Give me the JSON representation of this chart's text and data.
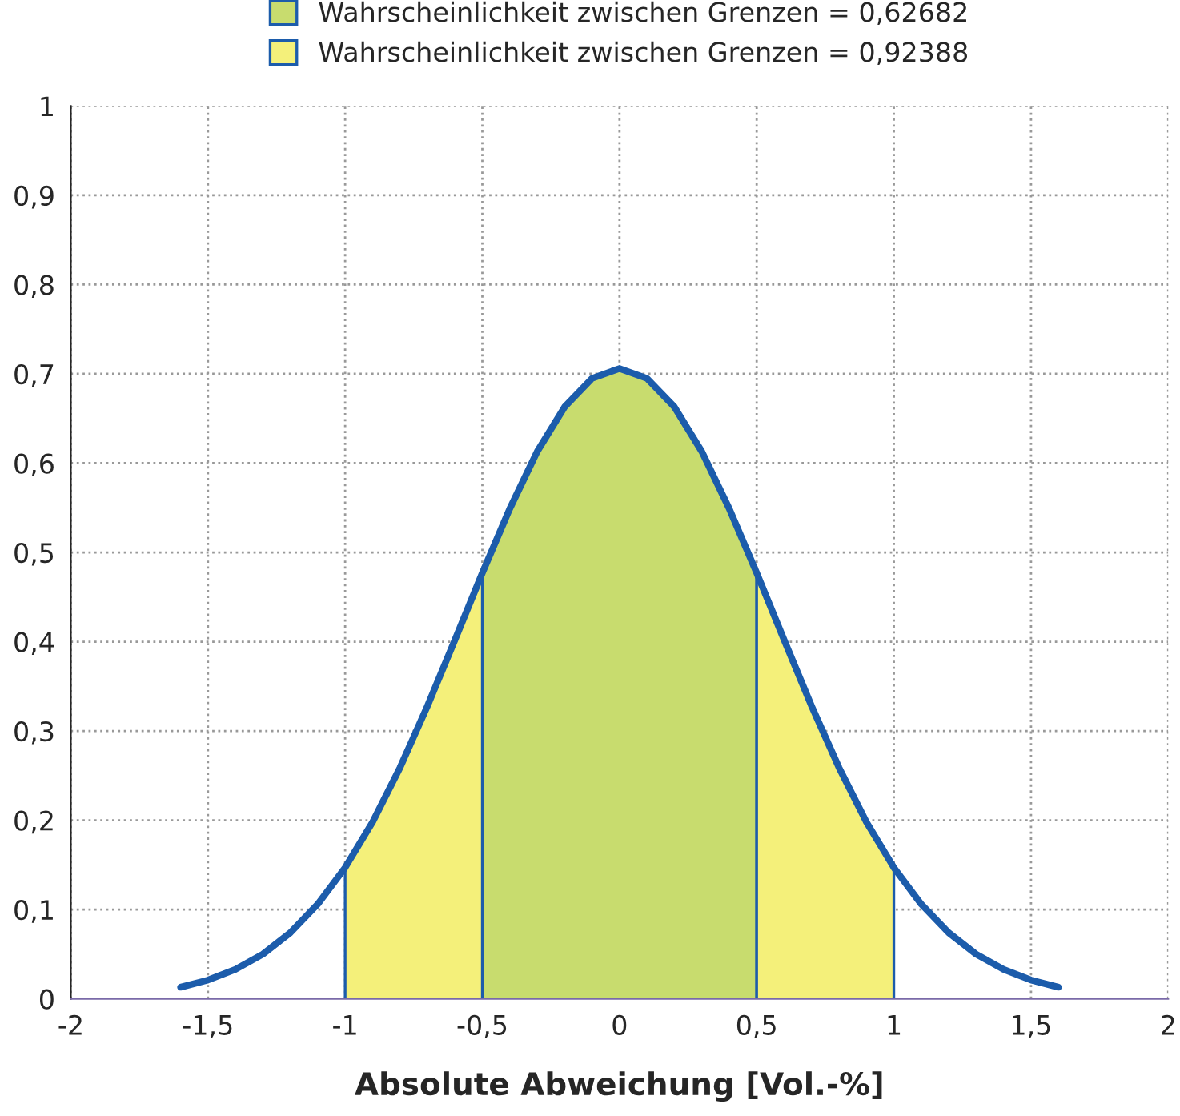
{
  "chart_data": {
    "type": "line",
    "xlabel": "Absolute Abweichung [Vol.-%]",
    "series": [
      {
        "type": "area",
        "name": "Wahrscheinlichkeit zwischen Grenzen = 0,62682",
        "color": "#c8dc6e",
        "x": [
          -0.5,
          -0.4,
          -0.3,
          -0.2,
          -0.1,
          0,
          0.1,
          0.2,
          0.3,
          0.4,
          0.5
        ],
        "values": [
          0.477,
          0.549,
          0.613,
          0.663,
          0.695,
          0.706,
          0.695,
          0.663,
          0.613,
          0.549,
          0.477
        ]
      },
      {
        "type": "area",
        "name": "Wahrscheinlichkeit zwischen Grenzen = 0,92388",
        "color": "#f4f07a",
        "x": [
          -1.0,
          -0.9,
          -0.8,
          -0.7,
          -0.6,
          -0.5,
          -0.4,
          -0.3,
          -0.2,
          -0.1,
          0,
          0.1,
          0.2,
          0.3,
          0.4,
          0.5,
          0.6,
          0.7,
          0.8,
          0.9,
          1.0
        ],
        "values": [
          0.147,
          0.198,
          0.259,
          0.328,
          0.402,
          0.477,
          null,
          null,
          null,
          null,
          null,
          null,
          null,
          null,
          null,
          0.477,
          0.402,
          0.328,
          0.259,
          0.198,
          0.147
        ]
      },
      {
        "color": "#1c5cab",
        "x": [
          -1.6,
          -1.5,
          -1.4,
          -1.3,
          -1.2,
          -1.1,
          -1.0,
          -0.9,
          -0.8,
          -0.7,
          -0.6,
          -0.5,
          -0.4,
          -0.3,
          -0.2,
          -0.1,
          0,
          0.1,
          0.2,
          0.3,
          0.4,
          0.5,
          0.6,
          0.7,
          0.8,
          0.9,
          1.0,
          1.1,
          1.2,
          1.3,
          1.4,
          1.5,
          1.6
        ],
        "values": [
          0.013,
          0.021,
          0.033,
          0.05,
          0.074,
          0.106,
          0.147,
          0.198,
          0.259,
          0.328,
          0.402,
          0.477,
          0.549,
          0.613,
          0.663,
          0.695,
          0.706,
          0.695,
          0.663,
          0.613,
          0.549,
          0.477,
          0.402,
          0.328,
          0.259,
          0.198,
          0.147,
          0.106,
          0.074,
          0.05,
          0.033,
          0.021,
          0.013
        ]
      }
    ],
    "xlim": [
      -2,
      2
    ],
    "xticks": [
      -2,
      {
        "value": -1.5,
        "label": "-1,5"
      },
      -1,
      {
        "value": -0.5,
        "label": "-0,5"
      },
      0,
      {
        "value": 0.5,
        "label": "0,5"
      },
      1,
      {
        "value": 1.5,
        "label": "1,5"
      },
      2
    ],
    "ylim": [
      0,
      1
    ],
    "yticks": [
      0,
      {
        "value": 0.1,
        "label": "0,1"
      },
      {
        "value": 0.2,
        "label": "0,2"
      },
      {
        "value": 0.3,
        "label": "0,3"
      },
      {
        "value": 0.4,
        "label": "0,4"
      },
      {
        "value": 0.5,
        "label": "0,5"
      },
      {
        "value": 0.6,
        "label": "0,6"
      },
      {
        "value": 0.7,
        "label": "0,7"
      },
      {
        "value": 0.8,
        "label": "0,8"
      },
      {
        "value": 0.9,
        "label": "0,9"
      },
      1
    ],
    "grid": true,
    "legend": "top",
    "line_style": "solid"
  }
}
